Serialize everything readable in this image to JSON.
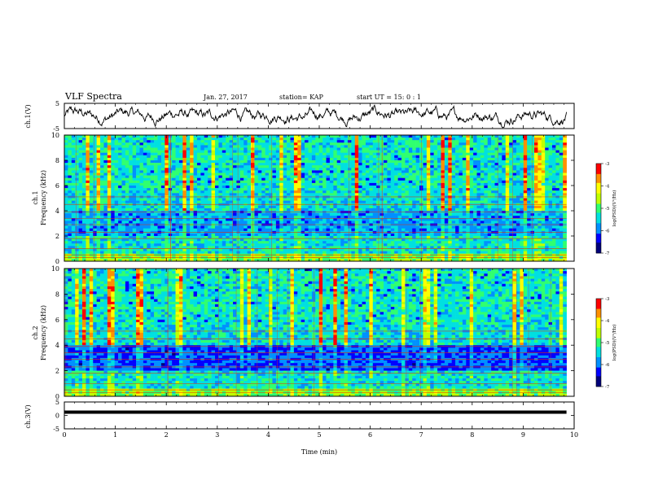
{
  "header": {
    "title": "VLF Spectra",
    "date": "Jan. 27, 2017",
    "station": "station= KAP",
    "start": "start  UT =   15: 0  : 1"
  },
  "colorbar": {
    "label": "log(PSD)(V²/Hz)",
    "ticks": [
      "-3",
      "-4",
      "-5",
      "-6",
      "-7"
    ],
    "colors": [
      "#00007a",
      "#0000ff",
      "#0090ff",
      "#00e0e0",
      "#30ff70",
      "#c0ff00",
      "#ffff00",
      "#ff9000",
      "#ff0000",
      "#ffffff"
    ]
  },
  "chart_data": [
    {
      "type": "line",
      "name": "ch1-waveform",
      "ylabel": "ch.1(V)",
      "ylim": [
        -5,
        5
      ],
      "yticks": [
        "5",
        "-5"
      ],
      "xlim": [
        0,
        10
      ]
    },
    {
      "type": "heatmap",
      "name": "ch1-spectrogram",
      "ylabel": "ch.1",
      "ylabel2": "Frequency  (kHz)",
      "ylim": [
        0,
        10
      ],
      "yticks": [
        "0",
        "2",
        "4",
        "6",
        "8",
        "10"
      ],
      "xlim": [
        0,
        10
      ],
      "clim": [
        -7,
        -3
      ]
    },
    {
      "type": "heatmap",
      "name": "ch2-spectrogram",
      "ylabel": "ch.2",
      "ylabel2": "Frequency  (kHz)",
      "ylim": [
        0,
        10
      ],
      "yticks": [
        "0",
        "2",
        "4",
        "6",
        "8",
        "10"
      ],
      "xlim": [
        0,
        10
      ],
      "clim": [
        -7,
        -3
      ]
    },
    {
      "type": "line",
      "name": "ch3-waveform",
      "ylabel": "ch.3(V)",
      "ylim": [
        -5,
        5
      ],
      "yticks": [
        "5",
        "0",
        "-5"
      ],
      "xlim": [
        0,
        10
      ],
      "series": [
        {
          "x": [
            0,
            9.85
          ],
          "y": [
            1.2,
            1.2
          ]
        }
      ]
    }
  ],
  "xaxis": {
    "label": "Time  (min)",
    "ticks": [
      "0",
      "1",
      "2",
      "3",
      "4",
      "5",
      "6",
      "7",
      "8",
      "9",
      "10"
    ]
  }
}
